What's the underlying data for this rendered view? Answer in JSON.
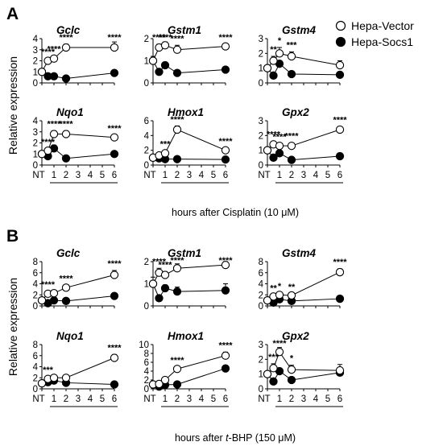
{
  "panel_labels": [
    "A",
    "B"
  ],
  "legend": {
    "items": [
      {
        "label": "Hepa-Vector",
        "marker": "open-circle"
      },
      {
        "label": "Hepa-Socs1",
        "marker": "filled-circle"
      }
    ]
  },
  "ylabel": "Relative expression",
  "panels": [
    {
      "label": "A",
      "xlabel_prefix": "hours after Cisplatin (10 ",
      "xlabel_unit": "μM",
      "xlabel_suffix": ")",
      "xticks": [
        "NT",
        "1",
        "2",
        "3",
        "4",
        "5",
        "6"
      ]
    },
    {
      "label": "B",
      "xlabel_prefix": "hours after ",
      "xlabel_italic": "t",
      "xlabel_mid": "-BHP (150 ",
      "xlabel_unit": "μM",
      "xlabel_suffix": ")",
      "xticks": [
        "NT",
        "1",
        "2",
        "3",
        "4",
        "5",
        "6"
      ]
    }
  ],
  "chart_data": [
    {
      "panel": "A",
      "type": "line",
      "title": "Gclc",
      "ylim": [
        0,
        4
      ],
      "yticks": [
        0,
        1,
        2,
        3,
        4
      ],
      "x": [
        0,
        0.5,
        1,
        2,
        6
      ],
      "series": [
        {
          "name": "Hepa-Vector",
          "values": [
            1.0,
            2.0,
            2.2,
            3.2,
            3.2
          ],
          "err": [
            0.15,
            0.2,
            0.25,
            0.3,
            0.5
          ]
        },
        {
          "name": "Hepa-Socs1",
          "values": [
            1.0,
            0.6,
            0.6,
            0.4,
            0.9
          ],
          "err": [
            0.05,
            0.05,
            0.05,
            0.05,
            0.1
          ]
        }
      ],
      "annotations": [
        {
          "x": 0.5,
          "label": "****"
        },
        {
          "x": 1,
          "label": "****"
        },
        {
          "x": 2,
          "label": "****"
        },
        {
          "x": 6,
          "label": "****"
        }
      ]
    },
    {
      "panel": "A",
      "type": "line",
      "title": "Gstm1",
      "ylim": [
        0,
        2
      ],
      "yticks": [
        0,
        1,
        2
      ],
      "x": [
        0,
        0.5,
        1,
        2,
        6
      ],
      "series": [
        {
          "name": "Hepa-Vector",
          "values": [
            1.0,
            1.6,
            1.7,
            1.5,
            1.65
          ],
          "err": [
            0.2,
            0.15,
            0.15,
            0.2,
            0.1
          ]
        },
        {
          "name": "Hepa-Socs1",
          "values": [
            1.0,
            0.5,
            0.8,
            0.45,
            0.6
          ],
          "err": [
            0.05,
            0.05,
            0.1,
            0.05,
            0.05
          ]
        }
      ],
      "annotations": [
        {
          "x": 0.5,
          "label": "****"
        },
        {
          "x": 1,
          "label": "****"
        },
        {
          "x": 2,
          "label": "****"
        },
        {
          "x": 6,
          "label": "****"
        }
      ]
    },
    {
      "panel": "A",
      "type": "line",
      "title": "Gstm4",
      "ylim": [
        0,
        3
      ],
      "yticks": [
        0,
        1,
        2,
        3
      ],
      "x": [
        0,
        0.5,
        1,
        2,
        6
      ],
      "series": [
        {
          "name": "Hepa-Vector",
          "values": [
            1.0,
            1.5,
            2.0,
            1.8,
            1.2
          ],
          "err": [
            0.2,
            0.3,
            0.4,
            0.3,
            0.3
          ]
        },
        {
          "name": "Hepa-Socs1",
          "values": [
            1.0,
            0.5,
            1.3,
            0.6,
            0.55
          ],
          "err": [
            0.05,
            0.05,
            0.1,
            0.1,
            0.1
          ]
        }
      ],
      "annotations": [
        {
          "x": 0.5,
          "label": "**"
        },
        {
          "x": 1,
          "label": "*"
        },
        {
          "x": 2,
          "label": "***"
        }
      ]
    },
    {
      "panel": "A",
      "type": "line",
      "title": "Nqo1",
      "ylim": [
        0,
        4
      ],
      "yticks": [
        0,
        1,
        2,
        3,
        4
      ],
      "x": [
        0,
        0.5,
        1,
        2,
        6
      ],
      "series": [
        {
          "name": "Hepa-Vector",
          "values": [
            1.0,
            1.3,
            2.8,
            2.8,
            2.5
          ],
          "err": [
            0.1,
            0.15,
            0.3,
            0.3,
            0.2
          ]
        },
        {
          "name": "Hepa-Socs1",
          "values": [
            1.0,
            0.8,
            1.5,
            0.6,
            1.0
          ],
          "err": [
            0.05,
            0.05,
            0.3,
            0.05,
            0.2
          ]
        }
      ],
      "annotations": [
        {
          "x": 0.5,
          "label": "****"
        },
        {
          "x": 1,
          "label": "****"
        },
        {
          "x": 2,
          "label": "****"
        },
        {
          "x": 6,
          "label": "****"
        }
      ]
    },
    {
      "panel": "A",
      "type": "line",
      "title": "Hmox1",
      "ylim": [
        0,
        6
      ],
      "yticks": [
        0,
        2,
        4,
        6
      ],
      "x": [
        0,
        0.5,
        1,
        2,
        6
      ],
      "series": [
        {
          "name": "Hepa-Vector",
          "values": [
            1.0,
            1.3,
            1.6,
            4.8,
            2.0
          ],
          "err": [
            0.2,
            0.2,
            0.3,
            0.5,
            0.3
          ]
        },
        {
          "name": "Hepa-Socs1",
          "values": [
            1.0,
            0.9,
            0.8,
            0.8,
            0.75
          ],
          "err": [
            0.05,
            0.05,
            0.05,
            0.05,
            0.05
          ]
        }
      ],
      "annotations": [
        {
          "x": 1,
          "label": "***"
        },
        {
          "x": 2,
          "label": "****"
        },
        {
          "x": 6,
          "label": "****"
        }
      ]
    },
    {
      "panel": "A",
      "type": "line",
      "title": "Gpx2",
      "ylim": [
        0,
        3
      ],
      "yticks": [
        0,
        1,
        2,
        3
      ],
      "x": [
        0,
        0.5,
        1,
        2,
        6
      ],
      "series": [
        {
          "name": "Hepa-Vector",
          "values": [
            1.0,
            1.4,
            1.3,
            1.3,
            2.4
          ],
          "err": [
            0.15,
            0.2,
            0.15,
            0.2,
            0.2
          ]
        },
        {
          "name": "Hepa-Socs1",
          "values": [
            1.0,
            0.5,
            0.8,
            0.35,
            0.6
          ],
          "err": [
            0.05,
            0.05,
            0.1,
            0.05,
            0.2
          ]
        }
      ],
      "annotations": [
        {
          "x": 0.5,
          "label": "****"
        },
        {
          "x": 1,
          "label": "****"
        },
        {
          "x": 2,
          "label": "****"
        },
        {
          "x": 6,
          "label": "****"
        }
      ]
    },
    {
      "panel": "B",
      "type": "line",
      "title": "Gclc",
      "ylim": [
        0,
        8
      ],
      "yticks": [
        0,
        2,
        4,
        6,
        8
      ],
      "x": [
        0,
        0.5,
        1,
        2,
        6
      ],
      "series": [
        {
          "name": "Hepa-Vector",
          "values": [
            1.0,
            2.2,
            2.3,
            3.3,
            5.6
          ],
          "err": [
            0.2,
            0.4,
            0.3,
            0.4,
            0.8
          ]
        },
        {
          "name": "Hepa-Socs1",
          "values": [
            1.0,
            0.5,
            1.0,
            0.9,
            1.8
          ],
          "err": [
            0.05,
            0.05,
            0.1,
            0.1,
            0.3
          ]
        }
      ],
      "annotations": [
        {
          "x": 0.5,
          "label": "****"
        },
        {
          "x": 2,
          "label": "****"
        },
        {
          "x": 6,
          "label": "****"
        }
      ]
    },
    {
      "panel": "B",
      "type": "line",
      "title": "Gstm1",
      "ylim": [
        0,
        2
      ],
      "yticks": [
        0,
        1,
        2
      ],
      "x": [
        0,
        0.5,
        1,
        2,
        6
      ],
      "series": [
        {
          "name": "Hepa-Vector",
          "values": [
            1.0,
            1.5,
            1.4,
            1.7,
            1.85
          ],
          "err": [
            0.3,
            0.2,
            0.15,
            0.2,
            0.15
          ]
        },
        {
          "name": "Hepa-Socs1",
          "values": [
            1.0,
            0.35,
            0.8,
            0.65,
            0.7
          ],
          "err": [
            0.05,
            0.05,
            0.15,
            0.2,
            0.3
          ]
        }
      ],
      "annotations": [
        {
          "x": 0.5,
          "label": "****"
        },
        {
          "x": 1,
          "label": "****"
        },
        {
          "x": 2,
          "label": "****"
        },
        {
          "x": 6,
          "label": "****"
        }
      ]
    },
    {
      "panel": "B",
      "type": "line",
      "title": "Gstm4",
      "ylim": [
        0,
        8
      ],
      "yticks": [
        0,
        2,
        4,
        6,
        8
      ],
      "x": [
        0,
        0.5,
        1,
        2,
        6
      ],
      "series": [
        {
          "name": "Hepa-Vector",
          "values": [
            1.0,
            1.7,
            2.0,
            1.9,
            6.1
          ],
          "err": [
            0.2,
            0.3,
            0.3,
            0.3,
            0.6
          ]
        },
        {
          "name": "Hepa-Socs1",
          "values": [
            1.0,
            0.6,
            1.2,
            0.9,
            1.3
          ],
          "err": [
            0.05,
            0.05,
            0.1,
            0.1,
            0.3
          ]
        }
      ],
      "annotations": [
        {
          "x": 0.5,
          "label": "**"
        },
        {
          "x": 1,
          "label": "*"
        },
        {
          "x": 2,
          "label": "**"
        },
        {
          "x": 6,
          "label": "****"
        }
      ]
    },
    {
      "panel": "B",
      "type": "line",
      "title": "Nqo1",
      "ylim": [
        0,
        8
      ],
      "yticks": [
        0,
        2,
        4,
        6,
        8
      ],
      "x": [
        0,
        0.5,
        1,
        2,
        6
      ],
      "series": [
        {
          "name": "Hepa-Vector",
          "values": [
            1.0,
            1.8,
            2.0,
            2.0,
            5.6
          ],
          "err": [
            0.3,
            0.4,
            0.5,
            0.5,
            0.6
          ]
        },
        {
          "name": "Hepa-Socs1",
          "values": [
            1.0,
            1.2,
            1.5,
            1.1,
            0.8
          ],
          "err": [
            0.1,
            0.1,
            0.2,
            0.2,
            0.1
          ]
        }
      ],
      "annotations": [
        {
          "x": 0.5,
          "label": "***"
        },
        {
          "x": 6,
          "label": "****"
        }
      ]
    },
    {
      "panel": "B",
      "type": "line",
      "title": "Hmox1",
      "ylim": [
        0,
        10
      ],
      "yticks": [
        0,
        2,
        4,
        6,
        8,
        10
      ],
      "x": [
        0,
        0.5,
        1,
        2,
        6
      ],
      "series": [
        {
          "name": "Hepa-Vector",
          "values": [
            1.0,
            1.1,
            2.0,
            4.5,
            7.5
          ],
          "err": [
            0.3,
            0.2,
            0.3,
            0.4,
            0.8
          ]
        },
        {
          "name": "Hepa-Socs1",
          "values": [
            1.0,
            0.5,
            0.9,
            1.0,
            4.6
          ],
          "err": [
            0.05,
            0.05,
            0.1,
            0.1,
            0.5
          ]
        }
      ],
      "annotations": [
        {
          "x": 2,
          "label": "****"
        },
        {
          "x": 6,
          "label": "****"
        }
      ]
    },
    {
      "panel": "B",
      "type": "line",
      "title": "Gpx2",
      "ylim": [
        0,
        3
      ],
      "yticks": [
        0,
        1,
        2,
        3
      ],
      "x": [
        0,
        0.5,
        1,
        2,
        6
      ],
      "series": [
        {
          "name": "Hepa-Vector",
          "values": [
            1.0,
            1.4,
            2.5,
            1.3,
            1.25
          ],
          "err": [
            0.15,
            0.3,
            0.3,
            0.3,
            0.4
          ]
        },
        {
          "name": "Hepa-Socs1",
          "values": [
            1.0,
            0.5,
            1.2,
            0.6,
            1.1
          ],
          "err": [
            0.05,
            0.05,
            0.2,
            0.1,
            0.15
          ]
        }
      ],
      "annotations": [
        {
          "x": 0.5,
          "label": "***"
        },
        {
          "x": 1,
          "label": "****"
        },
        {
          "x": 2,
          "label": "*"
        }
      ]
    }
  ]
}
